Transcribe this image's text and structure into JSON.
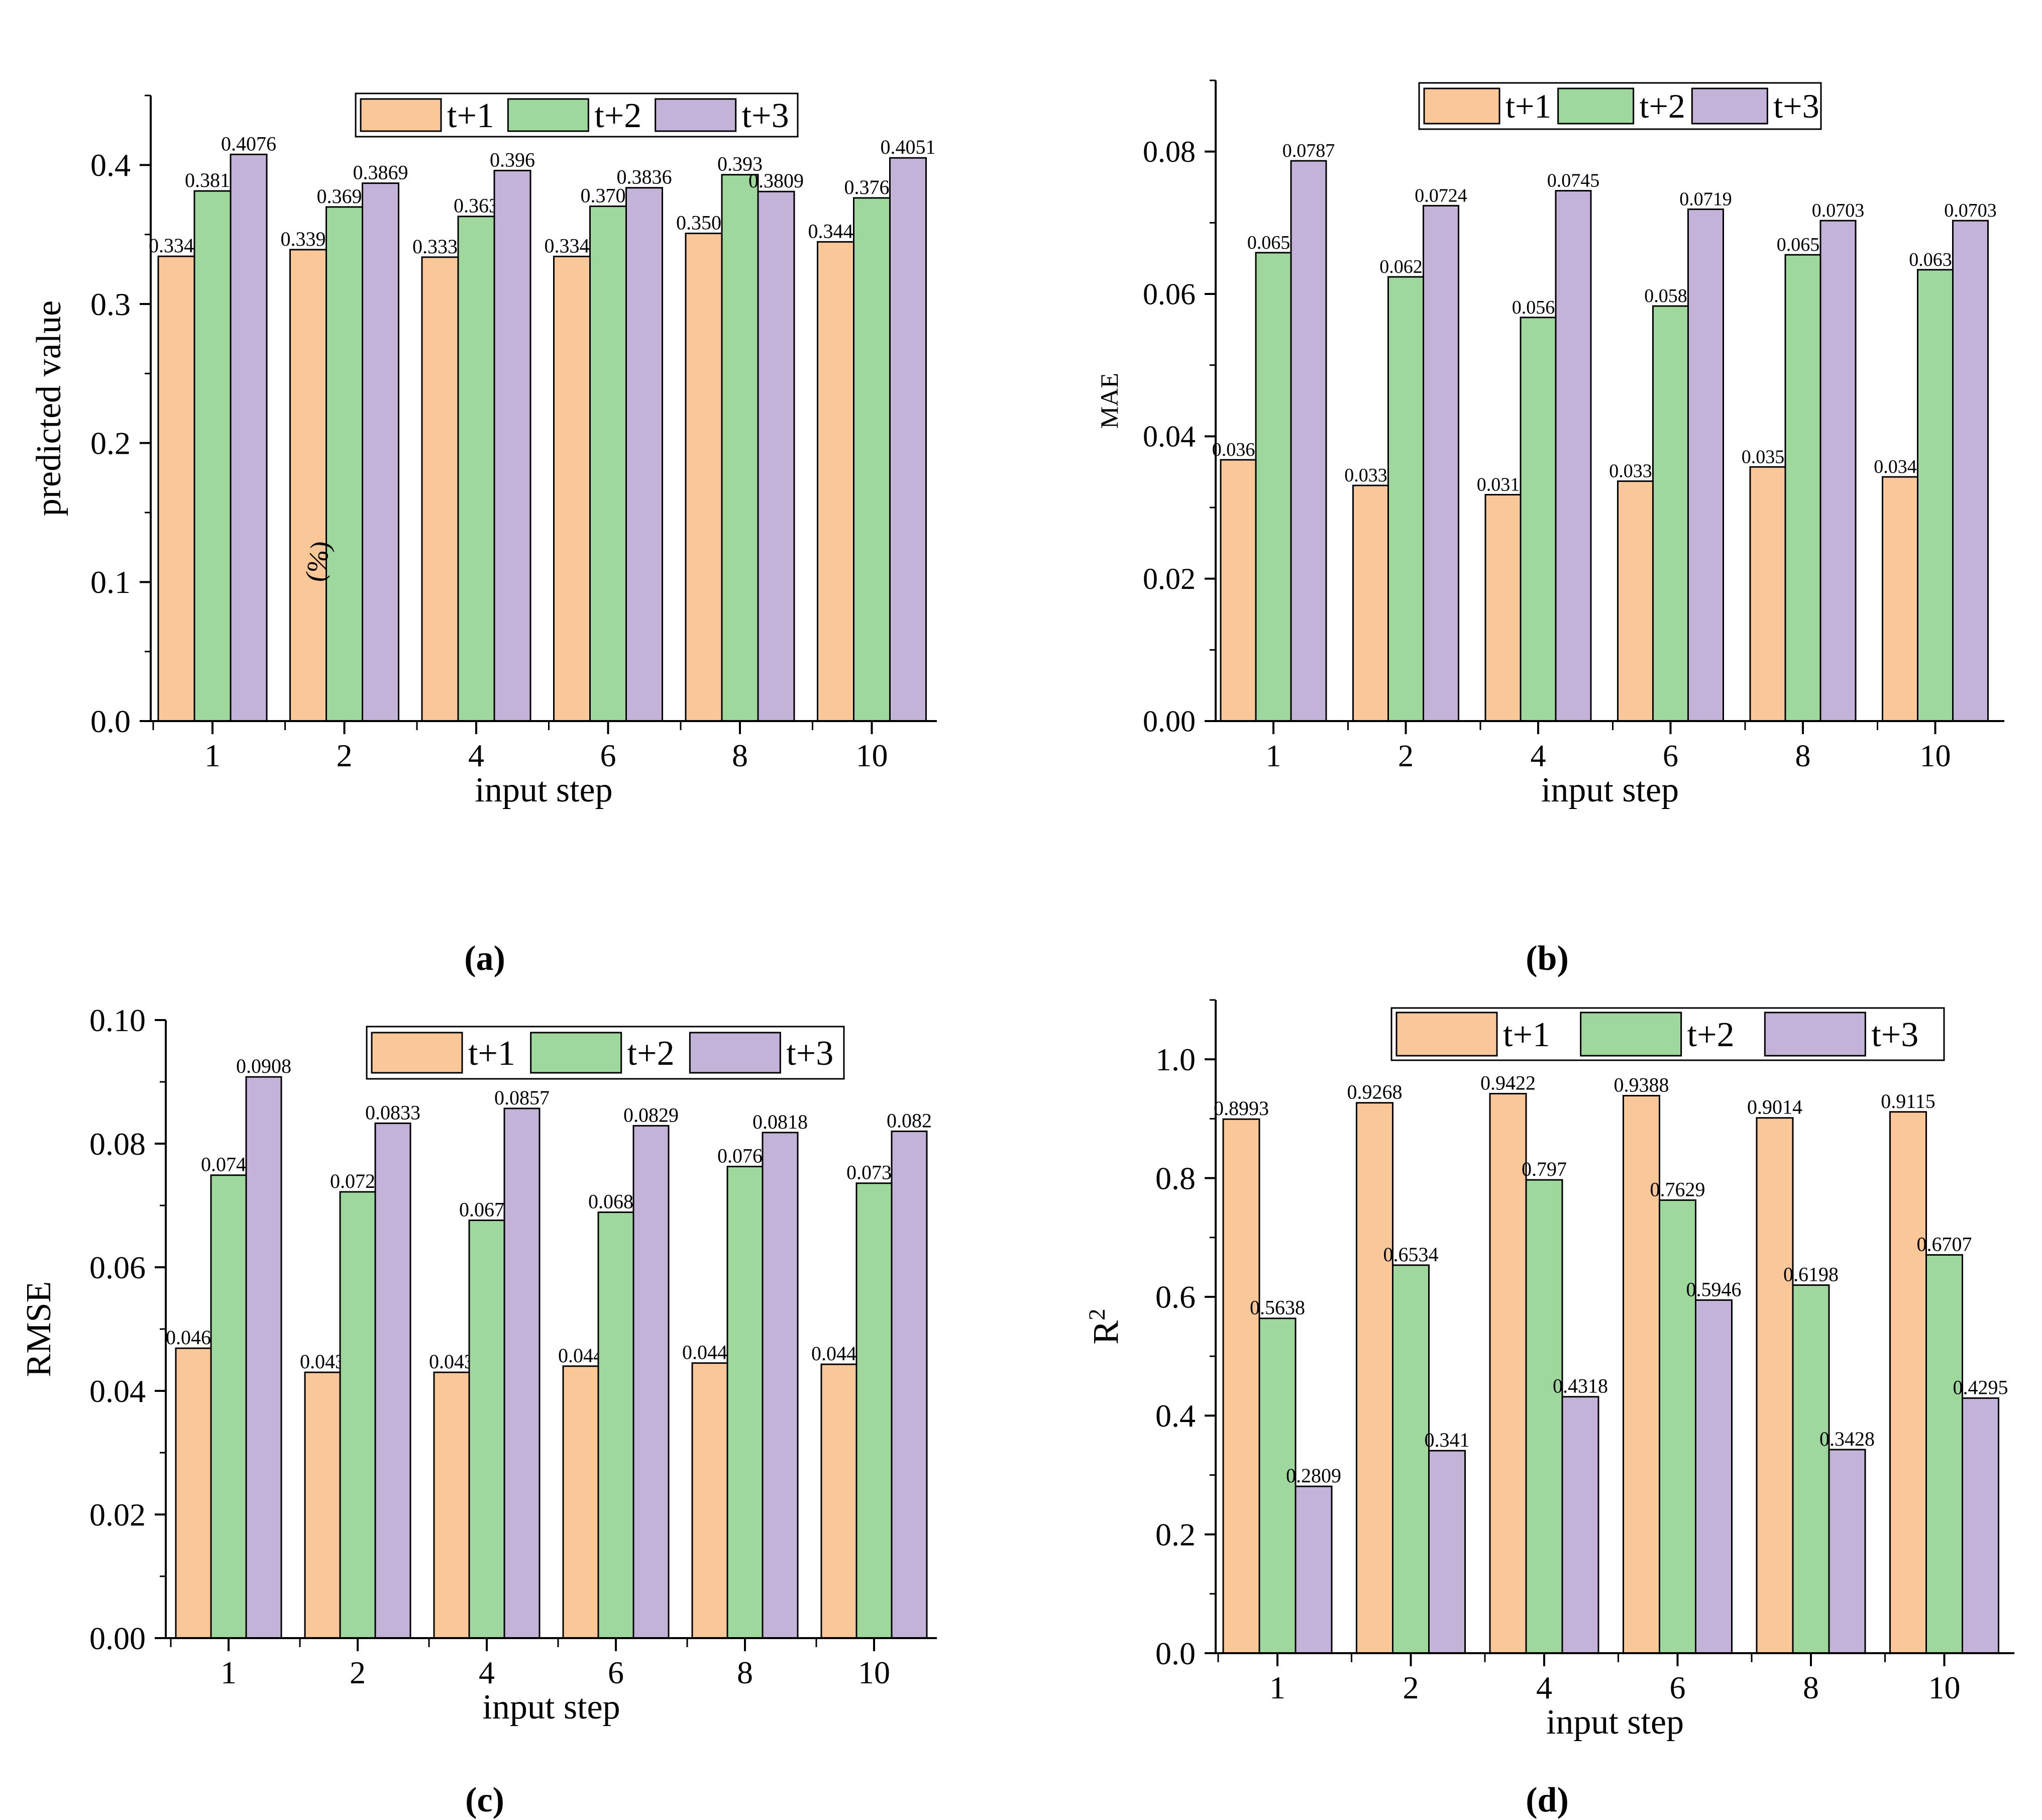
{
  "legend_labels": [
    "t+1",
    "t+2",
    "t+3"
  ],
  "colors": {
    "t+1": "#FAC898",
    "t+2": "#9ED89C",
    "t+3": "#C3B3D9",
    "axis": "#000000"
  },
  "chart_data": [
    {
      "type": "bar",
      "panel": "(a)",
      "xlabel": "input step",
      "ylabel": "predicted value",
      "categories": [
        "1",
        "2",
        "4",
        "6",
        "8",
        "10"
      ],
      "ylim": [
        0,
        0.45
      ],
      "yticks": [
        "0.0",
        "0.1",
        "0.2",
        "0.3",
        "0.4"
      ],
      "legend": "top",
      "annotation": "(%)",
      "series": [
        {
          "name": "t+1",
          "values": [
            0.3343,
            0.3391,
            0.3337,
            0.3342,
            0.3508,
            0.3447
          ],
          "labels": [
            "0.3343",
            "0.3391",
            "0.3337",
            "0.3342",
            "0.3508",
            "0.3447"
          ]
        },
        {
          "name": "t+2",
          "values": [
            0.3813,
            0.3698,
            0.363,
            0.3703,
            0.393,
            0.3763
          ],
          "labels": [
            "0.3813",
            "0.3698",
            "0.363",
            "0.3703",
            "0.393",
            "0.3763"
          ]
        },
        {
          "name": "t+3",
          "values": [
            0.4076,
            0.3869,
            0.396,
            0.3836,
            0.3809,
            0.4051
          ],
          "labels": [
            "0.4076",
            "0.3869",
            "0.396",
            "0.3836",
            "0.3809",
            "0.4051"
          ]
        }
      ]
    },
    {
      "type": "bar",
      "panel": "(b)",
      "xlabel": "input step",
      "ylabel": "MAE",
      "categories": [
        "1",
        "2",
        "4",
        "6",
        "8",
        "10"
      ],
      "ylim": [
        0,
        0.09
      ],
      "yticks": [
        "0.00",
        "0.02",
        "0.04",
        "0.06",
        "0.08"
      ],
      "legend": "top",
      "series": [
        {
          "name": "t+1",
          "values": [
            0.0367,
            0.0331,
            0.0318,
            0.0337,
            0.0357,
            0.0343
          ],
          "labels": [
            "0.0367",
            "0.0331",
            "0.0318",
            "0.0337",
            "0.0357",
            "0.0343"
          ]
        },
        {
          "name": "t+2",
          "values": [
            0.0658,
            0.0624,
            0.0567,
            0.0583,
            0.0655,
            0.0634
          ],
          "labels": [
            "0.0658",
            "0.0624",
            "0.0567",
            "0.0583",
            "0.0655",
            "0.0634"
          ]
        },
        {
          "name": "t+3",
          "values": [
            0.0787,
            0.0724,
            0.0745,
            0.0719,
            0.0703,
            0.0703
          ],
          "labels": [
            "0.0787",
            "0.0724",
            "0.0745",
            "0.0719",
            "0.0703",
            "0.0703"
          ]
        }
      ]
    },
    {
      "type": "bar",
      "panel": "(c)",
      "xlabel": "input step",
      "ylabel": "RMSE",
      "categories": [
        "1",
        "2",
        "4",
        "6",
        "8",
        "10"
      ],
      "ylim": [
        0,
        0.1
      ],
      "yticks": [
        "0.00",
        "0.02",
        "0.04",
        "0.06",
        "0.08",
        "0.10"
      ],
      "legend": "top",
      "series": [
        {
          "name": "t+1",
          "values": [
            0.0469,
            0.043,
            0.043,
            0.044,
            0.0445,
            0.0443
          ],
          "labels": [
            "0.0469",
            "0.043",
            "0.043",
            "0.044",
            "0.0445",
            "0.0443"
          ]
        },
        {
          "name": "t+2",
          "values": [
            0.0749,
            0.0722,
            0.0676,
            0.0689,
            0.0763,
            0.0736
          ],
          "labels": [
            "0.0749",
            "0.0722",
            "0.0676",
            "0.0689",
            "0.0763",
            "0.0736"
          ]
        },
        {
          "name": "t+3",
          "values": [
            0.0908,
            0.0833,
            0.0857,
            0.0829,
            0.0818,
            0.082
          ],
          "labels": [
            "0.0908",
            "0.0833",
            "0.0857",
            "0.0829",
            "0.0818",
            "0.082"
          ]
        }
      ]
    },
    {
      "type": "bar",
      "panel": "(d)",
      "xlabel": "input step",
      "ylabel": "R",
      "ylabel_superscript": "2",
      "categories": [
        "1",
        "2",
        "4",
        "6",
        "8",
        "10"
      ],
      "ylim": [
        0,
        1.1
      ],
      "yticks": [
        "0.0",
        "0.2",
        "0.4",
        "0.6",
        "0.8",
        "1.0"
      ],
      "legend": "top",
      "series": [
        {
          "name": "t+1",
          "values": [
            0.8993,
            0.9268,
            0.9422,
            0.9388,
            0.9014,
            0.9115
          ],
          "labels": [
            "0.8993",
            "0.9268",
            "0.9422",
            "0.9388",
            "0.9014",
            "0.9115"
          ]
        },
        {
          "name": "t+2",
          "values": [
            0.5638,
            0.6534,
            0.797,
            0.7629,
            0.6198,
            0.6707
          ],
          "labels": [
            "0.5638",
            "0.6534",
            "0.797",
            "0.7629",
            "0.6198",
            "0.6707"
          ]
        },
        {
          "name": "t+3",
          "values": [
            0.2809,
            0.341,
            0.4318,
            0.5946,
            0.3428,
            0.4295
          ],
          "labels": [
            "0.2809",
            "0.341",
            "0.4318",
            "0.5946",
            "0.3428",
            "0.4295"
          ]
        }
      ]
    }
  ]
}
